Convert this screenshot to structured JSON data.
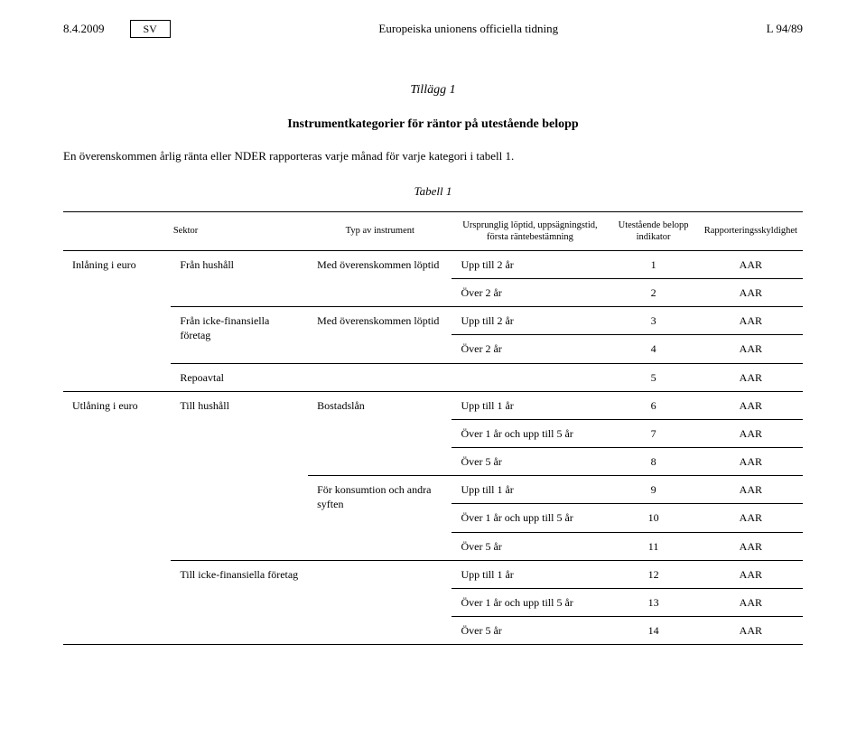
{
  "header": {
    "date": "8.4.2009",
    "lang": "SV",
    "center": "Europeiska unionens officiella tidning",
    "right": "L 94/89"
  },
  "appendix": "Tillägg 1",
  "title": "Instrumentkategorier för räntor på utestående belopp",
  "intro": "En överenskommen årlig ränta eller NDER rapporteras varje månad för varje kategori i tabell 1.",
  "table_label": "Tabell 1",
  "columns": {
    "c1": "Sektor",
    "c2": "Typ av instrument",
    "c3": "Ursprunglig löptid, uppsägningstid, första räntebestämning",
    "c4": "Utestående belopp indikator",
    "c5": "Rapporteringsskyldighet"
  },
  "rows": [
    {
      "sector": "Inlåning i euro",
      "instr": "Från hushåll",
      "sub": "Med överenskommen löptid",
      "mat": "Upp till 2 år",
      "ind": "1",
      "rep": "AAR"
    },
    {
      "sector": "",
      "instr": "",
      "sub": "",
      "mat": "Över 2 år",
      "ind": "2",
      "rep": "AAR"
    },
    {
      "sector": "",
      "instr": "Från icke-finansiella företag",
      "sub": "Med överenskommen löptid",
      "mat": "Upp till 2 år",
      "ind": "3",
      "rep": "AAR"
    },
    {
      "sector": "",
      "instr": "",
      "sub": "",
      "mat": "Över 2 år",
      "ind": "4",
      "rep": "AAR"
    },
    {
      "sector": "",
      "instr": "Repoavtal",
      "sub": "",
      "mat": "",
      "ind": "5",
      "rep": "AAR"
    },
    {
      "sector": "Utlåning i euro",
      "instr": "Till hushåll",
      "sub": "Bostadslån",
      "mat": "Upp till 1 år",
      "ind": "6",
      "rep": "AAR"
    },
    {
      "sector": "",
      "instr": "",
      "sub": "",
      "mat": "Över 1 år och upp till 5 år",
      "ind": "7",
      "rep": "AAR"
    },
    {
      "sector": "",
      "instr": "",
      "sub": "",
      "mat": "Över 5 år",
      "ind": "8",
      "rep": "AAR"
    },
    {
      "sector": "",
      "instr": "",
      "sub": "För konsumtion och andra syften",
      "mat": "Upp till 1 år",
      "ind": "9",
      "rep": "AAR"
    },
    {
      "sector": "",
      "instr": "",
      "sub": "",
      "mat": "Över 1 år och upp till 5 år",
      "ind": "10",
      "rep": "AAR"
    },
    {
      "sector": "",
      "instr": "",
      "sub": "",
      "mat": "Över 5 år",
      "ind": "11",
      "rep": "AAR"
    },
    {
      "sector": "",
      "instr": "Till icke-finansiella företag",
      "sub": "",
      "mat": "Upp till 1 år",
      "ind": "12",
      "rep": "AAR"
    },
    {
      "sector": "",
      "instr": "",
      "sub": "",
      "mat": "Över 1 år och upp till 5 år",
      "ind": "13",
      "rep": "AAR"
    },
    {
      "sector": "",
      "instr": "",
      "sub": "",
      "mat": "Över 5 år",
      "ind": "14",
      "rep": "AAR"
    }
  ],
  "rowspans": {
    "sector": [
      5,
      9
    ],
    "instr": [
      2,
      2,
      1,
      6,
      3
    ],
    "sub": [
      2,
      2,
      1,
      3,
      3,
      3
    ]
  },
  "colors": {
    "text": "#000000",
    "border": "#000000",
    "background": "#ffffff"
  },
  "fonts": {
    "body_family": "Georgia, Times New Roman, serif",
    "header_size_pt": 10,
    "body_size_pt": 9,
    "th_size_pt": 8
  }
}
